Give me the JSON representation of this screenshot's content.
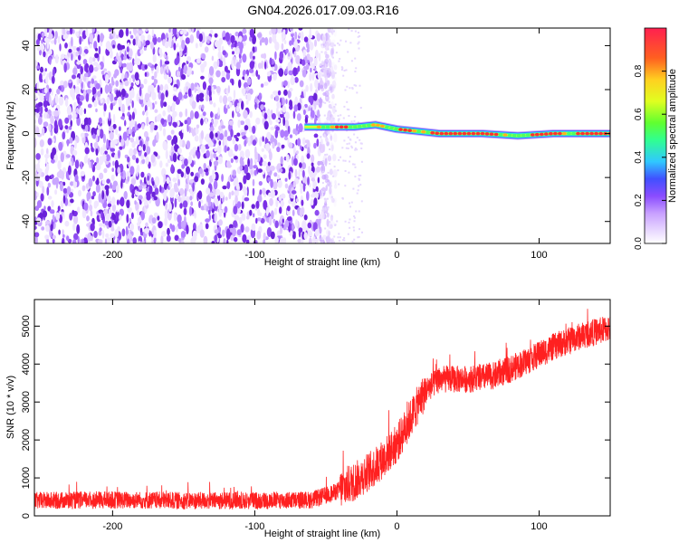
{
  "title": "GN04.2026.017.09.03.R16",
  "colors": {
    "snr_line": "#ff2020",
    "spectrogram_noise": "#7b2cf0",
    "spectrogram_peak": "#ff3030",
    "colormap": [
      "#ffffff",
      "#e8d8ff",
      "#c8a0ff",
      "#8a4cff",
      "#4050ff",
      "#30c8ff",
      "#30ff90",
      "#60ff30",
      "#e0ff20",
      "#ffd020",
      "#ff6020",
      "#ff2050"
    ]
  },
  "chart_data": [
    {
      "type": "heatmap",
      "xlabel": "Height of straight line (km)",
      "ylabel": "Frequency (Hz)",
      "xlim": [
        -255,
        150
      ],
      "ylim": [
        -50,
        48
      ],
      "xticks": [
        -200,
        -100,
        0,
        100
      ],
      "yticks": [
        -40,
        -20,
        0,
        20,
        40
      ],
      "noise_region_x": [
        -255,
        -55
      ],
      "signal_ridge": [
        {
          "x": -65,
          "y": 3
        },
        {
          "x": -45,
          "y": 3
        },
        {
          "x": -30,
          "y": 3
        },
        {
          "x": -15,
          "y": 4
        },
        {
          "x": 0,
          "y": 2
        },
        {
          "x": 15,
          "y": 1
        },
        {
          "x": 30,
          "y": 0
        },
        {
          "x": 60,
          "y": 0
        },
        {
          "x": 85,
          "y": -1
        },
        {
          "x": 110,
          "y": 0
        },
        {
          "x": 150,
          "y": 0
        }
      ],
      "colorbar": {
        "label": "Normalized spectral amplitude",
        "range": [
          0,
          1
        ],
        "ticks": [
          0.0,
          0.2,
          0.4,
          0.6,
          0.8
        ]
      }
    },
    {
      "type": "line",
      "xlabel": "Height of straight line (km)",
      "ylabel": "SNR (10 * v/v)",
      "xlim": [
        -255,
        150
      ],
      "ylim": [
        0,
        5700
      ],
      "xticks": [
        -200,
        -100,
        0,
        100
      ],
      "yticks": [
        0,
        1000,
        2000,
        3000,
        4000,
        5000
      ],
      "trend": [
        {
          "x": -255,
          "y": 400
        },
        {
          "x": -200,
          "y": 420
        },
        {
          "x": -150,
          "y": 400
        },
        {
          "x": -100,
          "y": 400
        },
        {
          "x": -60,
          "y": 420
        },
        {
          "x": -45,
          "y": 600
        },
        {
          "x": -30,
          "y": 900
        },
        {
          "x": -15,
          "y": 1300
        },
        {
          "x": 0,
          "y": 1900
        },
        {
          "x": 10,
          "y": 2600
        },
        {
          "x": 20,
          "y": 3300
        },
        {
          "x": 30,
          "y": 3600
        },
        {
          "x": 50,
          "y": 3600
        },
        {
          "x": 70,
          "y": 3700
        },
        {
          "x": 90,
          "y": 4050
        },
        {
          "x": 110,
          "y": 4450
        },
        {
          "x": 130,
          "y": 4750
        },
        {
          "x": 150,
          "y": 4950
        }
      ]
    }
  ]
}
